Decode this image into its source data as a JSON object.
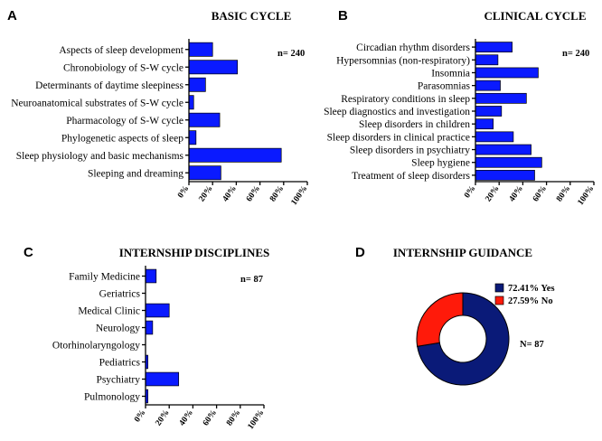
{
  "bar_color": "#0a1aff",
  "donut_colors": [
    "#0a1a78",
    "#ff1a0a"
  ],
  "chart_data": [
    {
      "type": "bar",
      "orientation": "horizontal",
      "letter": "A",
      "title": "BASIC CYCLE",
      "n_text": "n= 240",
      "categories": [
        "Aspects of sleep development",
        "Chronobiology of S-W cycle",
        "Determinants of daytime sleepiness",
        "Neuroanatomical substrates of S-W cycle",
        "Pharmacology of S-W cycle",
        "Phylogenetic aspects of sleep",
        "Sleep physiology and basic mechanisms",
        "Sleeping and dreaming"
      ],
      "values": [
        20,
        41,
        14,
        4,
        26,
        6,
        78,
        27
      ],
      "xlim": [
        0,
        100
      ],
      "xticks": [
        "0%",
        "20%",
        "40%",
        "60%",
        "80%",
        "100%"
      ]
    },
    {
      "type": "bar",
      "orientation": "horizontal",
      "letter": "B",
      "title": "CLINICAL CYCLE",
      "n_text": "n= 240",
      "categories": [
        "Circadian rhythm disorders",
        "Hypersomnias (non-respiratory)",
        "Insomnia",
        "Parasomnias",
        "Respiratory conditions in sleep",
        "Sleep diagnostics and investigation",
        "Sleep disorders in children",
        "Sleep disorders in clinical practice",
        "Sleep disorders in psychiatry",
        "Sleep hygiene",
        "Treatment of sleep disorders"
      ],
      "values": [
        31,
        19,
        53,
        21,
        43,
        22,
        15,
        32,
        47,
        56,
        50
      ],
      "xlim": [
        0,
        100
      ],
      "xticks": [
        "0%",
        "20%",
        "40%",
        "60%",
        "80%",
        "100%"
      ]
    },
    {
      "type": "bar",
      "orientation": "horizontal",
      "letter": "C",
      "title": "INTERNSHIP DISCIPLINES",
      "n_text": "n= 87",
      "categories": [
        "Family Medicine",
        "Geriatrics",
        "Medical Clinic",
        "Neurology",
        "Otorhinolaryngology",
        "Pediatrics",
        "Psychiatry",
        "Pulmonology"
      ],
      "values": [
        9,
        0,
        20,
        6,
        0,
        2,
        28,
        2
      ],
      "xlim": [
        0,
        100
      ],
      "xticks": [
        "0%",
        "20%",
        "40%",
        "60%",
        "80%",
        "100%"
      ]
    },
    {
      "type": "pie",
      "style": "donut",
      "letter": "D",
      "title": "INTERNSHIP GUIDANCE",
      "n_text": "N= 87",
      "slices": [
        {
          "label": "Yes",
          "value": 72.41,
          "text": "72.41%  Yes"
        },
        {
          "label": "No",
          "value": 27.59,
          "text": "27.59%  No"
        }
      ]
    }
  ]
}
